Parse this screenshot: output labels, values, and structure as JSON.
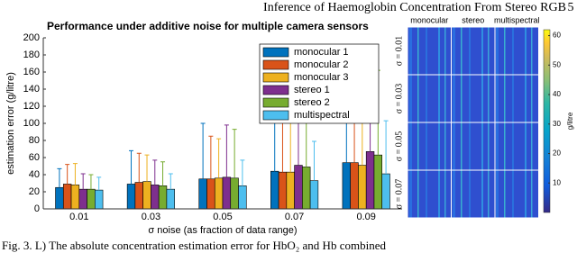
{
  "header": {
    "title": "Inference of Haemoglobin Concentration From Stereo RGB",
    "page": "5"
  },
  "caption": "Fig. 3. L) The absolute concentration estimation error for HbO₂ and Hb combined",
  "chart_data": [
    {
      "type": "bar",
      "title": "Performance under additive  noise for multiple camera sensors",
      "x_label": "σ noise (as fraction of data range)",
      "y_label": "estimation error (g/litre)",
      "categories": [
        "0.01",
        "0.03",
        "0.05",
        "0.07",
        "0.09"
      ],
      "series": [
        {
          "name": "monocular 1",
          "color": "#0072bd",
          "values": [
            25,
            29,
            35,
            44,
            54
          ],
          "errors": [
            22,
            39,
            65,
            91,
            114
          ]
        },
        {
          "name": "monocular 2",
          "color": "#d95319",
          "values": [
            29,
            31,
            35,
            43,
            54
          ],
          "errors": [
            23,
            34,
            50,
            79,
            112
          ]
        },
        {
          "name": "monocular 3",
          "color": "#edb120",
          "values": [
            28,
            32,
            36,
            43,
            51
          ],
          "errors": [
            25,
            31,
            46,
            73,
            109
          ]
        },
        {
          "name": "stereo 1",
          "color": "#7e2f8e",
          "values": [
            23,
            28,
            37,
            51,
            67
          ],
          "errors": [
            18,
            29,
            61,
            76,
            108
          ]
        },
        {
          "name": "stereo 2",
          "color": "#77ac30",
          "values": [
            23,
            27,
            36,
            49,
            63
          ],
          "errors": [
            17,
            28,
            57,
            58,
            99
          ]
        },
        {
          "name": "multispectral",
          "color": "#4dbeee",
          "values": [
            22,
            23,
            27,
            33,
            41
          ],
          "errors": [
            15,
            18,
            30,
            46,
            62
          ]
        }
      ],
      "ylim": [
        0,
        200
      ],
      "yticks": [
        0,
        20,
        40,
        60,
        80,
        100,
        120,
        140,
        160,
        180,
        200
      ],
      "grid": false,
      "legend": "upper-right"
    },
    {
      "type": "heatmap",
      "columns": [
        "monocular",
        "stereo",
        "multispectral"
      ],
      "rows": [
        "σ = 0.01",
        "σ = 0.03",
        "σ = 0.05",
        "σ = 0.07"
      ],
      "colorbar_label": "g/litre",
      "clim": [
        0,
        62
      ],
      "cticks": [
        10,
        20,
        30,
        40,
        50,
        60
      ]
    }
  ]
}
